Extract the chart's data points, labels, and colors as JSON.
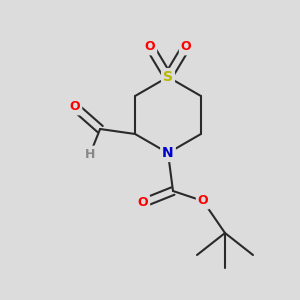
{
  "bg_color": "#dcdcdc",
  "atom_colors": {
    "S": "#b8b800",
    "O": "#ff0000",
    "N": "#0000cc",
    "C": "#000000",
    "H": "#888888"
  },
  "bond_color": "#2a2a2a",
  "bond_width": 1.5,
  "figsize": [
    3.0,
    3.0
  ],
  "dpi": 100
}
